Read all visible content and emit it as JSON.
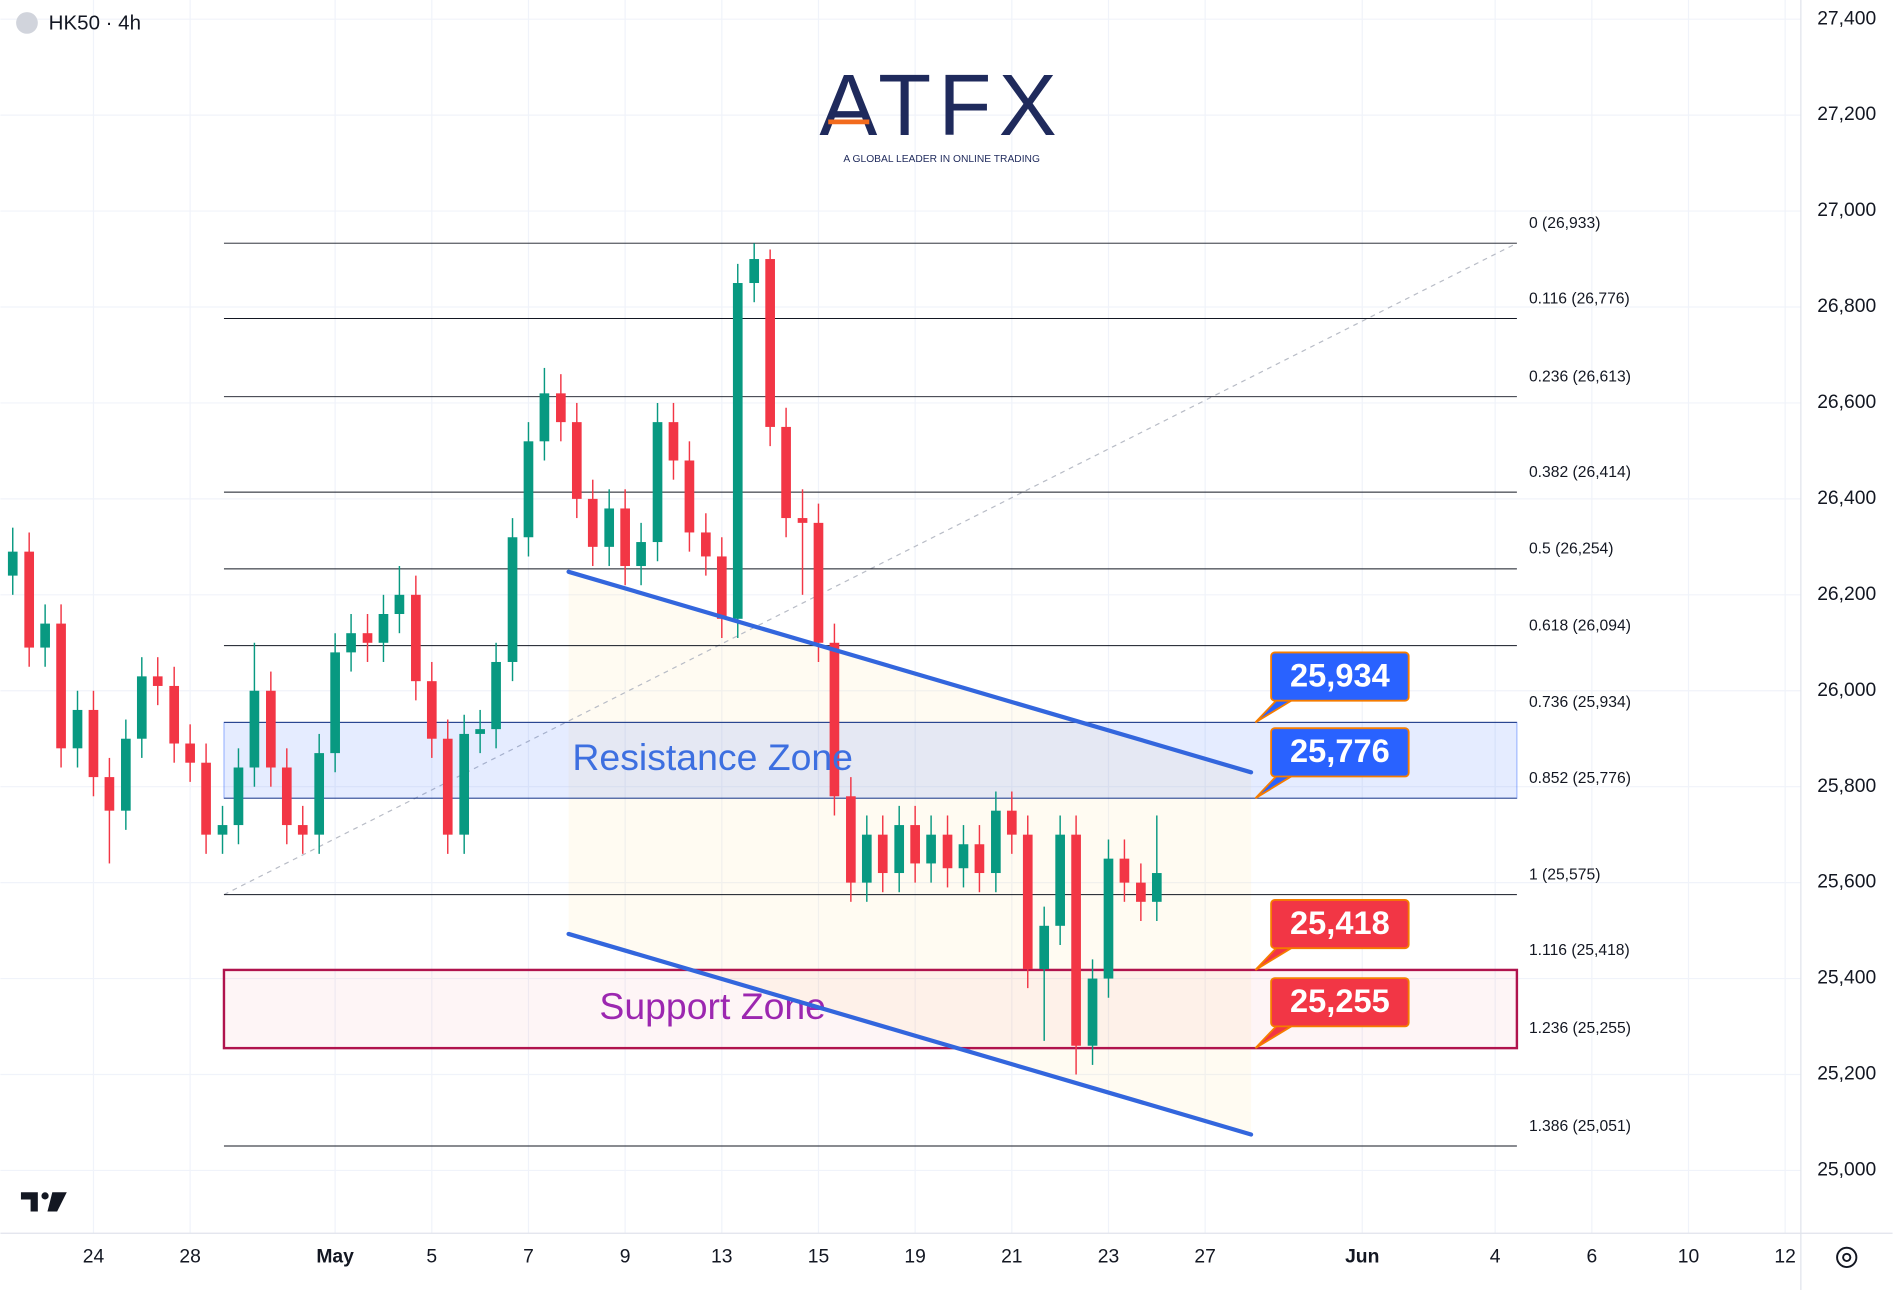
{
  "chart_data": {
    "type": "candlestick",
    "title": "HK50 · 4h",
    "logo": {
      "name": "ATFX",
      "tagline": "A GLOBAL LEADER IN ONLINE TRADING"
    },
    "up_color": "#089981",
    "down_color": "#f23645",
    "x": [
      -1.67,
      -1.33,
      -1,
      -0.67,
      -0.33,
      0,
      0.33,
      0.67,
      1,
      1.33,
      1.67,
      2,
      2.33,
      2.67,
      3,
      3.33,
      3.67,
      4,
      4.33,
      4.67,
      5,
      5.33,
      5.67,
      6,
      6.33,
      6.67,
      7,
      7.33,
      7.67,
      8,
      8.33,
      8.67,
      9,
      9.33,
      9.67,
      10,
      10.33,
      10.67,
      11,
      11.33,
      11.67,
      12,
      12.33,
      12.67,
      13,
      13.33,
      13.67,
      14,
      14.33,
      14.67,
      15,
      15.33,
      15.67,
      16,
      16.33,
      16.67,
      17,
      17.33,
      17.67,
      18,
      18.33,
      18.67,
      19,
      19.33,
      19.67,
      20,
      20.33,
      20.67,
      21,
      21.33,
      21.67,
      22
    ],
    "open": [
      26240,
      26290,
      26090,
      26140,
      25880,
      25960,
      25820,
      25750,
      25900,
      26030,
      26010,
      25890,
      25850,
      25700,
      25720,
      25840,
      26000,
      25840,
      25720,
      25700,
      25870,
      26080,
      26120,
      26100,
      26160,
      26200,
      26020,
      25900,
      25700,
      25910,
      25920,
      26060,
      26320,
      26520,
      26620,
      26560,
      26400,
      26300,
      26380,
      26260,
      26310,
      26560,
      26480,
      26330,
      26280,
      26150,
      26850,
      26900,
      26550,
      26360,
      26350,
      26100,
      25780,
      25600,
      25700,
      25620,
      25720,
      25640,
      25700,
      25630,
      25680,
      25620,
      25750,
      25700,
      25420,
      25510,
      25700,
      25260,
      25400,
      25650,
      25600,
      25560
    ],
    "high": [
      26340,
      26330,
      26180,
      26180,
      26000,
      26000,
      25860,
      25940,
      26070,
      26070,
      26050,
      25930,
      25890,
      25760,
      25880,
      26100,
      26040,
      25880,
      25760,
      25910,
      26120,
      26160,
      26160,
      26200,
      26260,
      26240,
      26060,
      25940,
      25950,
      25960,
      26100,
      26360,
      26560,
      26673,
      26660,
      26600,
      26440,
      26420,
      26420,
      26350,
      26600,
      26600,
      26520,
      26370,
      26320,
      26890,
      26933,
      26920,
      26590,
      26420,
      26390,
      26140,
      25820,
      25740,
      25740,
      25760,
      25760,
      25740,
      25740,
      25720,
      25720,
      25790,
      25790,
      25740,
      25550,
      25740,
      25740,
      25440,
      25690,
      25690,
      25640,
      25740
    ],
    "low": [
      26200,
      26050,
      26050,
      25840,
      25840,
      25780,
      25640,
      25710,
      25860,
      25970,
      25850,
      25810,
      25660,
      25660,
      25680,
      25800,
      25800,
      25680,
      25660,
      25660,
      25830,
      26040,
      26060,
      26060,
      26120,
      25980,
      25860,
      25660,
      25660,
      25870,
      25880,
      26020,
      26280,
      26480,
      26520,
      26360,
      26260,
      26260,
      26220,
      26220,
      26270,
      26440,
      26290,
      26240,
      26110,
      26110,
      26810,
      26510,
      26320,
      26200,
      26060,
      25740,
      25560,
      25560,
      25580,
      25580,
      25600,
      25600,
      25590,
      25590,
      25580,
      25580,
      25660,
      25380,
      25270,
      25470,
      25200,
      25220,
      25360,
      25560,
      25520,
      25520
    ],
    "close": [
      26290,
      26090,
      26140,
      25880,
      25960,
      25820,
      25750,
      25900,
      26030,
      26010,
      25890,
      25850,
      25700,
      25720,
      25840,
      26000,
      25840,
      25720,
      25700,
      25870,
      26080,
      26120,
      26100,
      26160,
      26200,
      26020,
      25900,
      25700,
      25910,
      25920,
      26060,
      26320,
      26520,
      26620,
      26560,
      26400,
      26300,
      26380,
      26260,
      26310,
      26560,
      26480,
      26330,
      26280,
      26150,
      26850,
      26900,
      26550,
      26360,
      26350,
      26100,
      25780,
      25600,
      25700,
      25620,
      25720,
      25640,
      25700,
      25630,
      25680,
      25620,
      25750,
      25700,
      25420,
      25510,
      25700,
      25260,
      25400,
      25650,
      25600,
      25560,
      25620
    ],
    "xlim": [
      -1.925,
      35.325
    ],
    "ylim": [
      24869,
      27440
    ],
    "grid": true,
    "xticks": [
      {
        "value": 0,
        "label": "24"
      },
      {
        "value": 2,
        "label": "28"
      },
      {
        "value": 5,
        "label": "May"
      },
      {
        "value": 7,
        "label": "5"
      },
      {
        "value": 9,
        "label": "7"
      },
      {
        "value": 11,
        "label": "9"
      },
      {
        "value": 13,
        "label": "13"
      },
      {
        "value": 15,
        "label": "15"
      },
      {
        "value": 17,
        "label": "19"
      },
      {
        "value": 19,
        "label": "21"
      },
      {
        "value": 21,
        "label": "23"
      },
      {
        "value": 23,
        "label": "27"
      },
      {
        "value": 26.25,
        "label": "Jun"
      },
      {
        "value": 29,
        "label": "4"
      },
      {
        "value": 31,
        "label": "6"
      },
      {
        "value": 33,
        "label": "10"
      },
      {
        "value": 35,
        "label": "12"
      }
    ],
    "yticks": [
      {
        "value": 25000,
        "label": "25,000"
      },
      {
        "value": 25200,
        "label": "25,200"
      },
      {
        "value": 25400,
        "label": "25,400"
      },
      {
        "value": 25600,
        "label": "25,600"
      },
      {
        "value": 25800,
        "label": "25,800"
      },
      {
        "value": 26000,
        "label": "26,000"
      },
      {
        "value": 26200,
        "label": "26,200"
      },
      {
        "value": 26400,
        "label": "26,400"
      },
      {
        "value": 26600,
        "label": "26,600"
      },
      {
        "value": 26800,
        "label": "26,800"
      },
      {
        "value": 27000,
        "label": "27,000"
      },
      {
        "value": 27200,
        "label": "27,200"
      },
      {
        "value": 27400,
        "label": "27,400"
      }
    ],
    "fib": {
      "x": [
        2.7,
        29.45
      ],
      "from": 25575,
      "to": 26933,
      "levels": [
        {
          "value": 26933,
          "label": "0 (26,933)"
        },
        {
          "value": 26776,
          "label": "0.116 (26,776)"
        },
        {
          "value": 26613,
          "label": "0.236 (26,613)"
        },
        {
          "value": 26414,
          "label": "0.382 (26,414)"
        },
        {
          "value": 26254,
          "label": "0.5 (26,254)"
        },
        {
          "value": 26094,
          "label": "0.618 (26,094)"
        },
        {
          "value": 25934,
          "label": "0.736 (25,934)"
        },
        {
          "value": 25776,
          "label": "0.852 (25,776)"
        },
        {
          "value": 25575,
          "label": "1 (25,575)"
        },
        {
          "value": 25418,
          "label": "1.116 (25,418)"
        },
        {
          "value": 25255,
          "label": "1.236 (25,255)"
        },
        {
          "value": 25051,
          "label": "1.386 (25,051)"
        }
      ]
    },
    "zones": [
      {
        "name": "Resistance Zone",
        "low": {
          "value": 25776,
          "label": "25,776"
        },
        "high": {
          "value": 25934,
          "label": "25,934"
        },
        "color": "#2962ff",
        "text_color": "#3d6fe0"
      },
      {
        "name": "Support Zone",
        "low": {
          "value": 25255,
          "label": "25,255"
        },
        "high": {
          "value": 25418,
          "label": "25,418"
        },
        "color": "#f23645",
        "text_color": "#9c27b0"
      }
    ],
    "trendlines": [
      {
        "x": [
          9.83,
          23.95
        ],
        "y": [
          26248,
          25830
        ],
        "color": "#3366dd"
      },
      {
        "x": [
          9.83,
          23.95
        ],
        "y": [
          25493,
          25075
        ],
        "color": "#3366dd"
      }
    ]
  }
}
